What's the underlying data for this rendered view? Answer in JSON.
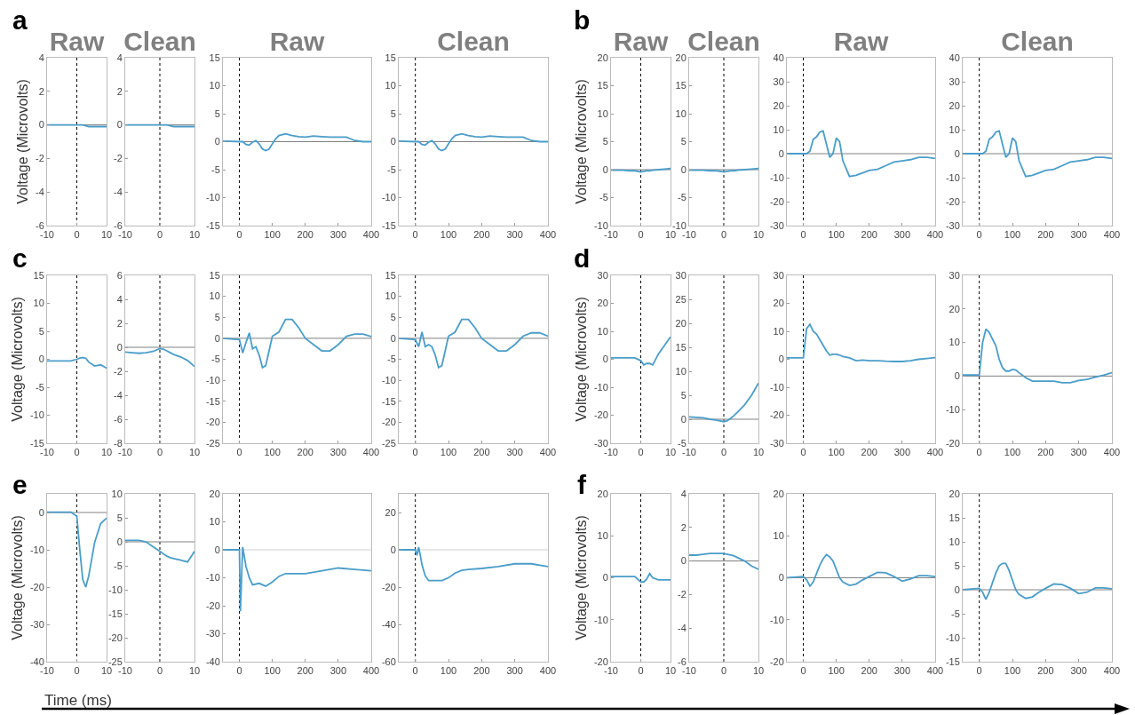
{
  "chart_data": [
    {
      "type": "line",
      "title": "Raw",
      "ylabel": "Voltage (Microvolts)",
      "annotations": [
        "a"
      ],
      "x": [
        -10,
        -8,
        -6,
        -4,
        -2,
        0,
        1,
        2,
        3,
        4,
        6,
        8,
        10
      ],
      "xlim": [
        -10,
        10
      ],
      "xticks": [
        -10,
        0,
        10
      ],
      "ylim": [
        -6,
        4
      ],
      "yticks": [
        -6,
        -4,
        -2,
        0,
        2,
        4
      ],
      "ref_lines": [
        {
          "axis": "x",
          "value": 0,
          "color": "#000000",
          "line_style": "dotted"
        },
        {
          "axis": "y",
          "value": 0,
          "color": "#808080",
          "line_style": "solid"
        }
      ],
      "series": [
        {
          "color": "#4a9dc9",
          "values": [
            0,
            0,
            0,
            0,
            0,
            0,
            0,
            0,
            -0.05,
            -0.1,
            -0.1,
            -0.1,
            -0.1
          ]
        }
      ]
    },
    {
      "type": "line",
      "title": "Clean",
      "x": [
        -10,
        -8,
        -6,
        -4,
        -2,
        0,
        1,
        2,
        3,
        4,
        6,
        8,
        10
      ],
      "xlim": [
        -10,
        10
      ],
      "xticks": [
        -10,
        0,
        10
      ],
      "ylim": [
        -6,
        4
      ],
      "yticks": [
        -6,
        -4,
        -2,
        0,
        2,
        4
      ],
      "ref_lines": [
        {
          "axis": "x",
          "value": 0,
          "color": "#000000",
          "line_style": "dotted"
        },
        {
          "axis": "y",
          "value": 0,
          "color": "#808080",
          "line_style": "solid"
        }
      ],
      "series": [
        {
          "color": "#4a9dc9",
          "values": [
            0,
            0,
            0,
            0,
            0,
            0,
            0,
            0,
            -0.05,
            -0.1,
            -0.1,
            -0.1,
            -0.1
          ]
        }
      ]
    },
    {
      "type": "line",
      "title": "Raw",
      "x": [
        -50,
        0,
        10,
        20,
        30,
        40,
        50,
        60,
        70,
        80,
        90,
        100,
        110,
        120,
        140,
        160,
        180,
        200,
        225,
        250,
        275,
        300,
        325,
        350,
        375,
        400
      ],
      "xlim": [
        -50,
        400
      ],
      "xticks": [
        0,
        100,
        200,
        300,
        400
      ],
      "ylim": [
        -15,
        15
      ],
      "yticks": [
        -15,
        -10,
        -5,
        0,
        5,
        10,
        15
      ],
      "ref_lines": [
        {
          "axis": "x",
          "value": 0,
          "color": "#000000",
          "line_style": "dotted"
        },
        {
          "axis": "y",
          "value": 0,
          "color": "#808080",
          "line_style": "solid"
        }
      ],
      "series": [
        {
          "color": "#4a9dc9",
          "values": [
            0.1,
            0,
            0,
            -0.5,
            -0.6,
            -0.1,
            0.2,
            -0.4,
            -1.3,
            -1.6,
            -1.3,
            -0.4,
            0.5,
            1.1,
            1.4,
            1.1,
            0.9,
            0.8,
            1,
            0.9,
            0.8,
            0.8,
            0.8,
            0.2,
            0,
            0
          ]
        }
      ]
    },
    {
      "type": "line",
      "title": "Clean",
      "x": [
        -50,
        0,
        10,
        20,
        30,
        40,
        50,
        60,
        70,
        80,
        90,
        100,
        110,
        120,
        140,
        160,
        180,
        200,
        225,
        250,
        275,
        300,
        325,
        350,
        375,
        400
      ],
      "xlim": [
        -50,
        400
      ],
      "xticks": [
        0,
        100,
        200,
        300,
        400
      ],
      "ylim": [
        -15,
        15
      ],
      "yticks": [
        -15,
        -10,
        -5,
        0,
        5,
        10,
        15
      ],
      "ref_lines": [
        {
          "axis": "x",
          "value": 0,
          "color": "#000000",
          "line_style": "dotted"
        },
        {
          "axis": "y",
          "value": 0,
          "color": "#808080",
          "line_style": "solid"
        }
      ],
      "series": [
        {
          "color": "#4a9dc9",
          "values": [
            0.1,
            0,
            0,
            -0.5,
            -0.6,
            -0.1,
            0.2,
            -0.4,
            -1.3,
            -1.6,
            -1.3,
            -0.4,
            0.5,
            1.1,
            1.4,
            1.1,
            0.9,
            0.8,
            1,
            0.9,
            0.8,
            0.8,
            0.8,
            0.2,
            0,
            0
          ]
        }
      ]
    },
    {
      "type": "line",
      "title": "Raw",
      "ylabel": "Voltage (Microvolts)",
      "annotations": [
        "b"
      ],
      "x": [
        -10,
        -8,
        -6,
        -4,
        -2,
        0,
        1,
        2,
        3,
        4,
        6,
        8,
        10
      ],
      "xlim": [
        -10,
        10
      ],
      "xticks": [
        -10,
        0,
        10
      ],
      "ylim": [
        -10,
        20
      ],
      "yticks": [
        -10,
        -5,
        0,
        5,
        10,
        15,
        20
      ],
      "ref_lines": [
        {
          "axis": "x",
          "value": 0,
          "color": "#000000",
          "line_style": "dotted"
        },
        {
          "axis": "y",
          "value": 0,
          "color": "#808080",
          "line_style": "solid"
        }
      ],
      "series": [
        {
          "color": "#4a9dc9",
          "values": [
            -0.1,
            -0.1,
            -0.1,
            -0.2,
            -0.2,
            -0.4,
            -0.3,
            -0.2,
            -0.2,
            -0.1,
            0,
            0.1,
            0.2
          ]
        }
      ]
    },
    {
      "type": "line",
      "title": "Clean",
      "x": [
        -10,
        -8,
        -6,
        -4,
        -2,
        0,
        1,
        2,
        3,
        4,
        6,
        8,
        10
      ],
      "xlim": [
        -10,
        10
      ],
      "xticks": [
        -10,
        0,
        10
      ],
      "ylim": [
        -10,
        20
      ],
      "yticks": [
        -10,
        -5,
        0,
        5,
        10,
        15,
        20
      ],
      "ref_lines": [
        {
          "axis": "x",
          "value": 0,
          "color": "#000000",
          "line_style": "dotted"
        },
        {
          "axis": "y",
          "value": 0,
          "color": "#808080",
          "line_style": "solid"
        }
      ],
      "series": [
        {
          "color": "#4a9dc9",
          "values": [
            -0.1,
            -0.1,
            -0.1,
            -0.2,
            -0.2,
            -0.4,
            -0.3,
            -0.2,
            -0.2,
            -0.1,
            0,
            0.1,
            0.2
          ]
        }
      ]
    },
    {
      "type": "line",
      "title": "Raw",
      "x": [
        -50,
        0,
        10,
        20,
        30,
        40,
        50,
        60,
        70,
        80,
        90,
        100,
        110,
        120,
        140,
        160,
        180,
        200,
        225,
        250,
        275,
        300,
        325,
        350,
        375,
        400
      ],
      "xlim": [
        -50,
        400
      ],
      "xticks": [
        0,
        100,
        200,
        300,
        400
      ],
      "ylim": [
        -30,
        40
      ],
      "yticks": [
        -30,
        -20,
        -10,
        0,
        10,
        20,
        30,
        40
      ],
      "ref_lines": [
        {
          "axis": "x",
          "value": 0,
          "color": "#000000",
          "line_style": "dotted"
        },
        {
          "axis": "y",
          "value": 0,
          "color": "#808080",
          "line_style": "solid"
        }
      ],
      "series": [
        {
          "color": "#4a9dc9",
          "values": [
            0,
            0,
            0,
            1,
            6,
            7,
            9,
            9.5,
            4,
            -1.5,
            0,
            6.5,
            5,
            -3,
            -9.5,
            -9,
            -8,
            -7,
            -6.5,
            -5,
            -3.5,
            -3,
            -2.5,
            -1.5,
            -1.5,
            -2
          ]
        }
      ]
    },
    {
      "type": "line",
      "title": "Clean",
      "x": [
        -50,
        0,
        10,
        20,
        30,
        40,
        50,
        60,
        70,
        80,
        90,
        100,
        110,
        120,
        140,
        160,
        180,
        200,
        225,
        250,
        275,
        300,
        325,
        350,
        375,
        400
      ],
      "xlim": [
        -50,
        400
      ],
      "xticks": [
        0,
        100,
        200,
        300,
        400
      ],
      "ylim": [
        -30,
        40
      ],
      "yticks": [
        -30,
        -20,
        -10,
        0,
        10,
        20,
        30,
        40
      ],
      "ref_lines": [
        {
          "axis": "x",
          "value": 0,
          "color": "#000000",
          "line_style": "dotted"
        },
        {
          "axis": "y",
          "value": 0,
          "color": "#808080",
          "line_style": "solid"
        }
      ],
      "series": [
        {
          "color": "#4a9dc9",
          "values": [
            0,
            0,
            0,
            1,
            6,
            7,
            9,
            9.5,
            4,
            -1.5,
            0,
            6.5,
            5,
            -3,
            -9.5,
            -9,
            -8,
            -7,
            -6.5,
            -5,
            -3.5,
            -3,
            -2.5,
            -1.5,
            -1.5,
            -2
          ]
        }
      ]
    },
    {
      "type": "line",
      "ylabel": "Voltage (Microvolts)",
      "annotations": [
        "c"
      ],
      "x": [
        -10,
        -8,
        -6,
        -4,
        -2,
        0,
        1,
        2,
        3,
        4,
        6,
        8,
        10
      ],
      "xlim": [
        -10,
        10
      ],
      "xticks": [
        -10,
        0,
        10
      ],
      "ylim": [
        -15,
        15
      ],
      "yticks": [
        -15,
        -10,
        -5,
        0,
        5,
        10,
        15
      ],
      "ref_lines": [
        {
          "axis": "x",
          "value": 0,
          "color": "#000000",
          "line_style": "dotted"
        }
      ],
      "series": [
        {
          "color": "#4a9dc9",
          "values": [
            -0.3,
            -0.3,
            -0.3,
            -0.3,
            -0.3,
            0,
            0.2,
            0.3,
            0.2,
            -0.5,
            -1.2,
            -1,
            -1.6
          ]
        }
      ]
    },
    {
      "type": "line",
      "x": [
        -10,
        -8,
        -6,
        -4,
        -2,
        0,
        1,
        2,
        3,
        4,
        6,
        8,
        10
      ],
      "xlim": [
        -10,
        10
      ],
      "xticks": [
        -10,
        0,
        10
      ],
      "ylim": [
        -8,
        6
      ],
      "yticks": [
        -8,
        -6,
        -4,
        -2,
        0,
        2,
        4,
        6
      ],
      "ref_lines": [
        {
          "axis": "x",
          "value": 0,
          "color": "#000000",
          "line_style": "dotted"
        },
        {
          "axis": "y",
          "value": 0,
          "color": "#808080",
          "line_style": "solid"
        }
      ],
      "series": [
        {
          "color": "#4a9dc9",
          "values": [
            -0.4,
            -0.45,
            -0.5,
            -0.45,
            -0.35,
            -0.1,
            -0.15,
            -0.3,
            -0.45,
            -0.6,
            -0.8,
            -1.1,
            -1.6
          ]
        }
      ]
    },
    {
      "type": "line",
      "x": [
        -50,
        0,
        10,
        20,
        30,
        40,
        50,
        60,
        70,
        80,
        90,
        100,
        110,
        120,
        140,
        160,
        180,
        200,
        225,
        250,
        275,
        300,
        325,
        350,
        375,
        400
      ],
      "xlim": [
        -50,
        400
      ],
      "xticks": [
        0,
        100,
        200,
        300,
        400
      ],
      "ylim": [
        -25,
        15
      ],
      "yticks": [
        -25,
        -20,
        -15,
        -10,
        -5,
        0,
        5,
        10,
        15
      ],
      "ref_lines": [
        {
          "axis": "x",
          "value": 0,
          "color": "#000000",
          "line_style": "dotted"
        },
        {
          "axis": "y",
          "value": 0,
          "color": "#808080",
          "line_style": "solid"
        }
      ],
      "series": [
        {
          "color": "#4a9dc9",
          "values": [
            0,
            -0.3,
            -3.5,
            -1,
            1.3,
            -2.5,
            -2,
            -4,
            -7,
            -6.5,
            -3,
            0.5,
            1,
            1.5,
            4.5,
            4.5,
            2.5,
            0,
            -1.5,
            -3,
            -3,
            -1.5,
            0.5,
            1,
            1,
            0.4
          ]
        }
      ]
    },
    {
      "type": "line",
      "x": [
        -50,
        0,
        10,
        20,
        30,
        40,
        50,
        60,
        70,
        80,
        90,
        100,
        110,
        120,
        140,
        160,
        180,
        200,
        225,
        250,
        275,
        300,
        325,
        350,
        375,
        400
      ],
      "xlim": [
        -50,
        400
      ],
      "xticks": [
        0,
        100,
        200,
        300,
        400
      ],
      "ylim": [
        -25,
        15
      ],
      "yticks": [
        -25,
        -20,
        -15,
        -10,
        -5,
        0,
        5,
        10,
        15
      ],
      "ref_lines": [
        {
          "axis": "x",
          "value": 0,
          "color": "#000000",
          "line_style": "dotted"
        },
        {
          "axis": "y",
          "value": 0,
          "color": "#808080",
          "line_style": "solid"
        }
      ],
      "series": [
        {
          "color": "#4a9dc9",
          "values": [
            0,
            -0.3,
            -2,
            1.5,
            -2,
            -1.5,
            -2,
            -4,
            -7,
            -6.5,
            -3,
            0.5,
            1,
            1.5,
            4.5,
            4.5,
            2.5,
            0,
            -1.5,
            -3,
            -3,
            -1.5,
            0.5,
            1.3,
            1.3,
            0.5
          ]
        }
      ]
    },
    {
      "type": "line",
      "ylabel": "Voltage (Microvolts)",
      "annotations": [
        "d"
      ],
      "x": [
        -10,
        -8,
        -6,
        -4,
        -2,
        0,
        1,
        2,
        3,
        4,
        6,
        8,
        10
      ],
      "xlim": [
        -10,
        10
      ],
      "xticks": [
        -10,
        0,
        10
      ],
      "ylim": [
        -30,
        30
      ],
      "yticks": [
        -30,
        -20,
        -10,
        0,
        10,
        20,
        30
      ],
      "ref_lines": [
        {
          "axis": "x",
          "value": 0,
          "color": "#000000",
          "line_style": "dotted"
        }
      ],
      "series": [
        {
          "color": "#4a9dc9",
          "values": [
            0.5,
            0.5,
            0.5,
            0.5,
            0.5,
            -0.5,
            -2,
            -1.5,
            -1.5,
            -2,
            2,
            5,
            8
          ]
        }
      ]
    },
    {
      "type": "line",
      "x": [
        -10,
        -8,
        -6,
        -4,
        -2,
        0,
        1,
        2,
        3,
        4,
        6,
        8,
        10
      ],
      "xlim": [
        -10,
        10
      ],
      "xticks": [
        -10,
        0,
        10
      ],
      "ylim": [
        -5,
        30
      ],
      "yticks": [
        -5,
        0,
        5,
        10,
        15,
        20,
        25,
        30
      ],
      "ref_lines": [
        {
          "axis": "x",
          "value": 0,
          "color": "#000000",
          "line_style": "dotted"
        },
        {
          "axis": "y",
          "value": 0,
          "color": "#808080",
          "line_style": "solid"
        }
      ],
      "series": [
        {
          "color": "#4a9dc9",
          "values": [
            0.5,
            0.4,
            0.3,
            0,
            -0.2,
            -0.5,
            -0.3,
            0.2,
            0.8,
            1.5,
            3,
            5,
            7.5
          ]
        }
      ]
    },
    {
      "type": "line",
      "x": [
        -50,
        0,
        10,
        20,
        30,
        40,
        50,
        60,
        70,
        80,
        90,
        100,
        110,
        120,
        140,
        160,
        180,
        200,
        225,
        250,
        275,
        300,
        325,
        350,
        375,
        400
      ],
      "xlim": [
        -50,
        400
      ],
      "xticks": [
        0,
        100,
        200,
        300,
        400
      ],
      "ylim": [
        -30,
        30
      ],
      "yticks": [
        -30,
        -20,
        -10,
        0,
        10,
        20,
        30
      ],
      "ref_lines": [
        {
          "axis": "x",
          "value": 0,
          "color": "#000000",
          "line_style": "dotted"
        }
      ],
      "series": [
        {
          "color": "#4a9dc9",
          "values": [
            0.5,
            0.5,
            11,
            12.5,
            10,
            9,
            7,
            5,
            3,
            1.5,
            1.8,
            1.8,
            1.5,
            1,
            0.5,
            -0.5,
            -0.3,
            -0.5,
            -0.5,
            -0.7,
            -0.8,
            -0.8,
            -0.5,
            0,
            0.3,
            0.6
          ]
        }
      ]
    },
    {
      "type": "line",
      "x": [
        -50,
        0,
        10,
        20,
        30,
        40,
        50,
        60,
        70,
        80,
        90,
        100,
        110,
        120,
        140,
        160,
        180,
        200,
        225,
        250,
        275,
        300,
        325,
        350,
        375,
        400
      ],
      "xlim": [
        -50,
        400
      ],
      "xticks": [
        0,
        100,
        200,
        300,
        400
      ],
      "ylim": [
        -20,
        30
      ],
      "yticks": [
        -20,
        -10,
        0,
        10,
        20,
        30
      ],
      "ref_lines": [
        {
          "axis": "x",
          "value": 0,
          "color": "#000000",
          "line_style": "dotted"
        },
        {
          "axis": "y",
          "value": 0,
          "color": "#808080",
          "line_style": "solid"
        }
      ],
      "series": [
        {
          "color": "#4a9dc9",
          "values": [
            0.3,
            0.3,
            10,
            14,
            13,
            11,
            9,
            5,
            2.5,
            1.5,
            1.5,
            2,
            1.8,
            1,
            -0.5,
            -1.5,
            -1.5,
            -1.5,
            -1.5,
            -2,
            -2,
            -1.3,
            -1,
            -0.3,
            0.3,
            1
          ]
        }
      ]
    },
    {
      "type": "line",
      "ylabel": "Voltage (Microvolts)",
      "annotations": [
        "e",
        "Time (ms)"
      ],
      "x": [
        -10,
        -8,
        -6,
        -4,
        -2,
        0,
        1,
        2,
        3,
        4,
        6,
        8,
        10
      ],
      "xlim": [
        -10,
        10
      ],
      "xticks": [
        -10,
        0,
        10
      ],
      "ylim": [
        -40,
        5
      ],
      "yticks": [
        -40,
        -30,
        -20,
        -10,
        0
      ],
      "ref_lines": [
        {
          "axis": "x",
          "value": 0,
          "color": "#000000",
          "line_style": "dotted"
        },
        {
          "axis": "y",
          "value": 0,
          "color": "#808080",
          "line_style": "solid"
        }
      ],
      "series": [
        {
          "color": "#4a9dc9",
          "values": [
            0.1,
            0.1,
            0.1,
            0.1,
            0.1,
            -1,
            -10,
            -18,
            -20,
            -17,
            -8,
            -3,
            -1.5
          ]
        }
      ]
    },
    {
      "type": "line",
      "x": [
        -10,
        -8,
        -6,
        -4,
        -2,
        0,
        1,
        2,
        3,
        4,
        6,
        8,
        10
      ],
      "xlim": [
        -10,
        10
      ],
      "xticks": [
        -10,
        0,
        10
      ],
      "ylim": [
        -25,
        10
      ],
      "yticks": [
        -25,
        -20,
        -15,
        -10,
        -5,
        0,
        5,
        10
      ],
      "ref_lines": [
        {
          "axis": "x",
          "value": 0,
          "color": "#000000",
          "line_style": "dotted"
        },
        {
          "axis": "y",
          "value": 0,
          "color": "#808080",
          "line_style": "solid"
        }
      ],
      "series": [
        {
          "color": "#4a9dc9",
          "values": [
            0.3,
            0.3,
            0.3,
            0,
            -1,
            -2,
            -2.5,
            -3,
            -3.3,
            -3.5,
            -3.8,
            -4.2,
            -2
          ]
        }
      ]
    },
    {
      "type": "line",
      "x": [
        -50,
        0,
        3,
        10,
        20,
        30,
        40,
        60,
        80,
        100,
        120,
        140,
        160,
        200,
        250,
        300,
        350,
        400
      ],
      "xlim": [
        -50,
        400
      ],
      "xticks": [
        0,
        100,
        200,
        300,
        400
      ],
      "ylim": [
        -40,
        20
      ],
      "yticks": [
        -40,
        -30,
        -20,
        -10,
        0,
        10,
        20
      ],
      "ref_lines": [
        {
          "axis": "x",
          "value": 0,
          "color": "#000000",
          "line_style": "dotted"
        },
        {
          "axis": "y",
          "value": 0,
          "color": "#d0d0d0",
          "line_style": "solid"
        }
      ],
      "series": [
        {
          "color": "#4a9dc9",
          "values": [
            0,
            0,
            -22,
            1,
            -6,
            -10,
            -12.5,
            -12,
            -13,
            -11.5,
            -9.5,
            -8.5,
            -8.5,
            -8.5,
            -7.5,
            -6.5,
            -7,
            -7.5
          ]
        }
      ]
    },
    {
      "type": "line",
      "x": [
        -50,
        0,
        5,
        10,
        15,
        20,
        30,
        40,
        60,
        80,
        100,
        120,
        140,
        160,
        200,
        250,
        300,
        350,
        400
      ],
      "xlim": [
        -50,
        400
      ],
      "xticks": [
        0,
        100,
        200,
        300,
        400
      ],
      "ylim": [
        -60,
        30
      ],
      "yticks": [
        -60,
        -40,
        -20,
        0,
        20
      ],
      "ref_lines": [
        {
          "axis": "x",
          "value": 0,
          "color": "#000000",
          "line_style": "dotted"
        },
        {
          "axis": "y",
          "value": 0,
          "color": "#d0d0d0",
          "line_style": "solid"
        }
      ],
      "series": [
        {
          "color": "#4a9dc9",
          "values": [
            0,
            0,
            -3,
            1.5,
            -3,
            -8,
            -14,
            -16.5,
            -16.5,
            -16.5,
            -15,
            -12.5,
            -11,
            -10.5,
            -10,
            -9,
            -7.5,
            -7.5,
            -9
          ]
        }
      ]
    },
    {
      "type": "line",
      "ylabel": "Voltage (Microvolts)",
      "annotations": [
        "f"
      ],
      "x": [
        -10,
        -8,
        -6,
        -4,
        -2,
        0,
        1,
        2,
        3,
        4,
        6,
        8,
        10
      ],
      "xlim": [
        -10,
        10
      ],
      "xticks": [
        -10,
        0,
        10
      ],
      "ylim": [
        -20,
        20
      ],
      "yticks": [
        -20,
        -10,
        0,
        10,
        20
      ],
      "ref_lines": [
        {
          "axis": "x",
          "value": 0,
          "color": "#000000",
          "line_style": "dotted"
        }
      ],
      "series": [
        {
          "color": "#4a9dc9",
          "values": [
            0.3,
            0.3,
            0.3,
            0.3,
            0.3,
            -1,
            -1,
            -0.3,
            1,
            0,
            -0.5,
            -0.5,
            -0.5
          ]
        }
      ]
    },
    {
      "type": "line",
      "x": [
        -10,
        -8,
        -6,
        -4,
        -2,
        0,
        1,
        2,
        3,
        4,
        6,
        8,
        10
      ],
      "xlim": [
        -10,
        10
      ],
      "xticks": [
        -10,
        0,
        10
      ],
      "ylim": [
        -6,
        4
      ],
      "yticks": [
        -6,
        -4,
        -2,
        0,
        2,
        4
      ],
      "ref_lines": [
        {
          "axis": "x",
          "value": 0,
          "color": "#000000",
          "line_style": "dotted"
        },
        {
          "axis": "y",
          "value": 0,
          "color": "#808080",
          "line_style": "solid"
        }
      ],
      "series": [
        {
          "color": "#4a9dc9",
          "values": [
            0.35,
            0.35,
            0.4,
            0.45,
            0.45,
            0.45,
            0.4,
            0.35,
            0.3,
            0.2,
            0,
            -0.3,
            -0.5
          ]
        }
      ]
    },
    {
      "type": "line",
      "x": [
        -50,
        0,
        10,
        20,
        30,
        40,
        50,
        60,
        70,
        80,
        90,
        100,
        110,
        120,
        140,
        160,
        180,
        200,
        225,
        250,
        275,
        300,
        325,
        350,
        375,
        400
      ],
      "xlim": [
        -50,
        400
      ],
      "xticks": [
        0,
        100,
        200,
        300,
        400
      ],
      "ylim": [
        -20,
        20
      ],
      "yticks": [
        -20,
        -10,
        0,
        10,
        20
      ],
      "ref_lines": [
        {
          "axis": "x",
          "value": 0,
          "color": "#000000",
          "line_style": "dotted"
        },
        {
          "axis": "y",
          "value": 0,
          "color": "#808080",
          "line_style": "solid"
        }
      ],
      "series": [
        {
          "color": "#4a9dc9",
          "values": [
            0,
            0.3,
            -0.5,
            -2,
            -1,
            1,
            3,
            4.5,
            5.5,
            5,
            4,
            2,
            0,
            -1,
            -1.8,
            -1.5,
            -0.5,
            0.3,
            1.3,
            1.2,
            0.3,
            -0.8,
            -0.3,
            0.5,
            0.5,
            0.3
          ]
        }
      ]
    },
    {
      "type": "line",
      "x": [
        -50,
        0,
        10,
        20,
        30,
        40,
        50,
        60,
        70,
        80,
        90,
        100,
        110,
        120,
        140,
        160,
        180,
        200,
        225,
        250,
        275,
        300,
        325,
        350,
        375,
        400
      ],
      "xlim": [
        -50,
        400
      ],
      "xticks": [
        0,
        100,
        200,
        300,
        400
      ],
      "ylim": [
        -15,
        20
      ],
      "yticks": [
        -15,
        -10,
        -5,
        0,
        5,
        10,
        15,
        20
      ],
      "ref_lines": [
        {
          "axis": "x",
          "value": 0,
          "color": "#000000",
          "line_style": "dotted"
        },
        {
          "axis": "y",
          "value": 0,
          "color": "#808080",
          "line_style": "solid"
        }
      ],
      "series": [
        {
          "color": "#4a9dc9",
          "values": [
            0,
            0.3,
            -0.5,
            -2,
            -0.5,
            1.5,
            3.5,
            5,
            5.5,
            5.5,
            4,
            2,
            0,
            -1,
            -1.8,
            -1.5,
            -0.5,
            0.3,
            1.2,
            1.1,
            0.3,
            -0.8,
            -0.5,
            0.4,
            0.4,
            0.2
          ]
        }
      ]
    }
  ]
}
